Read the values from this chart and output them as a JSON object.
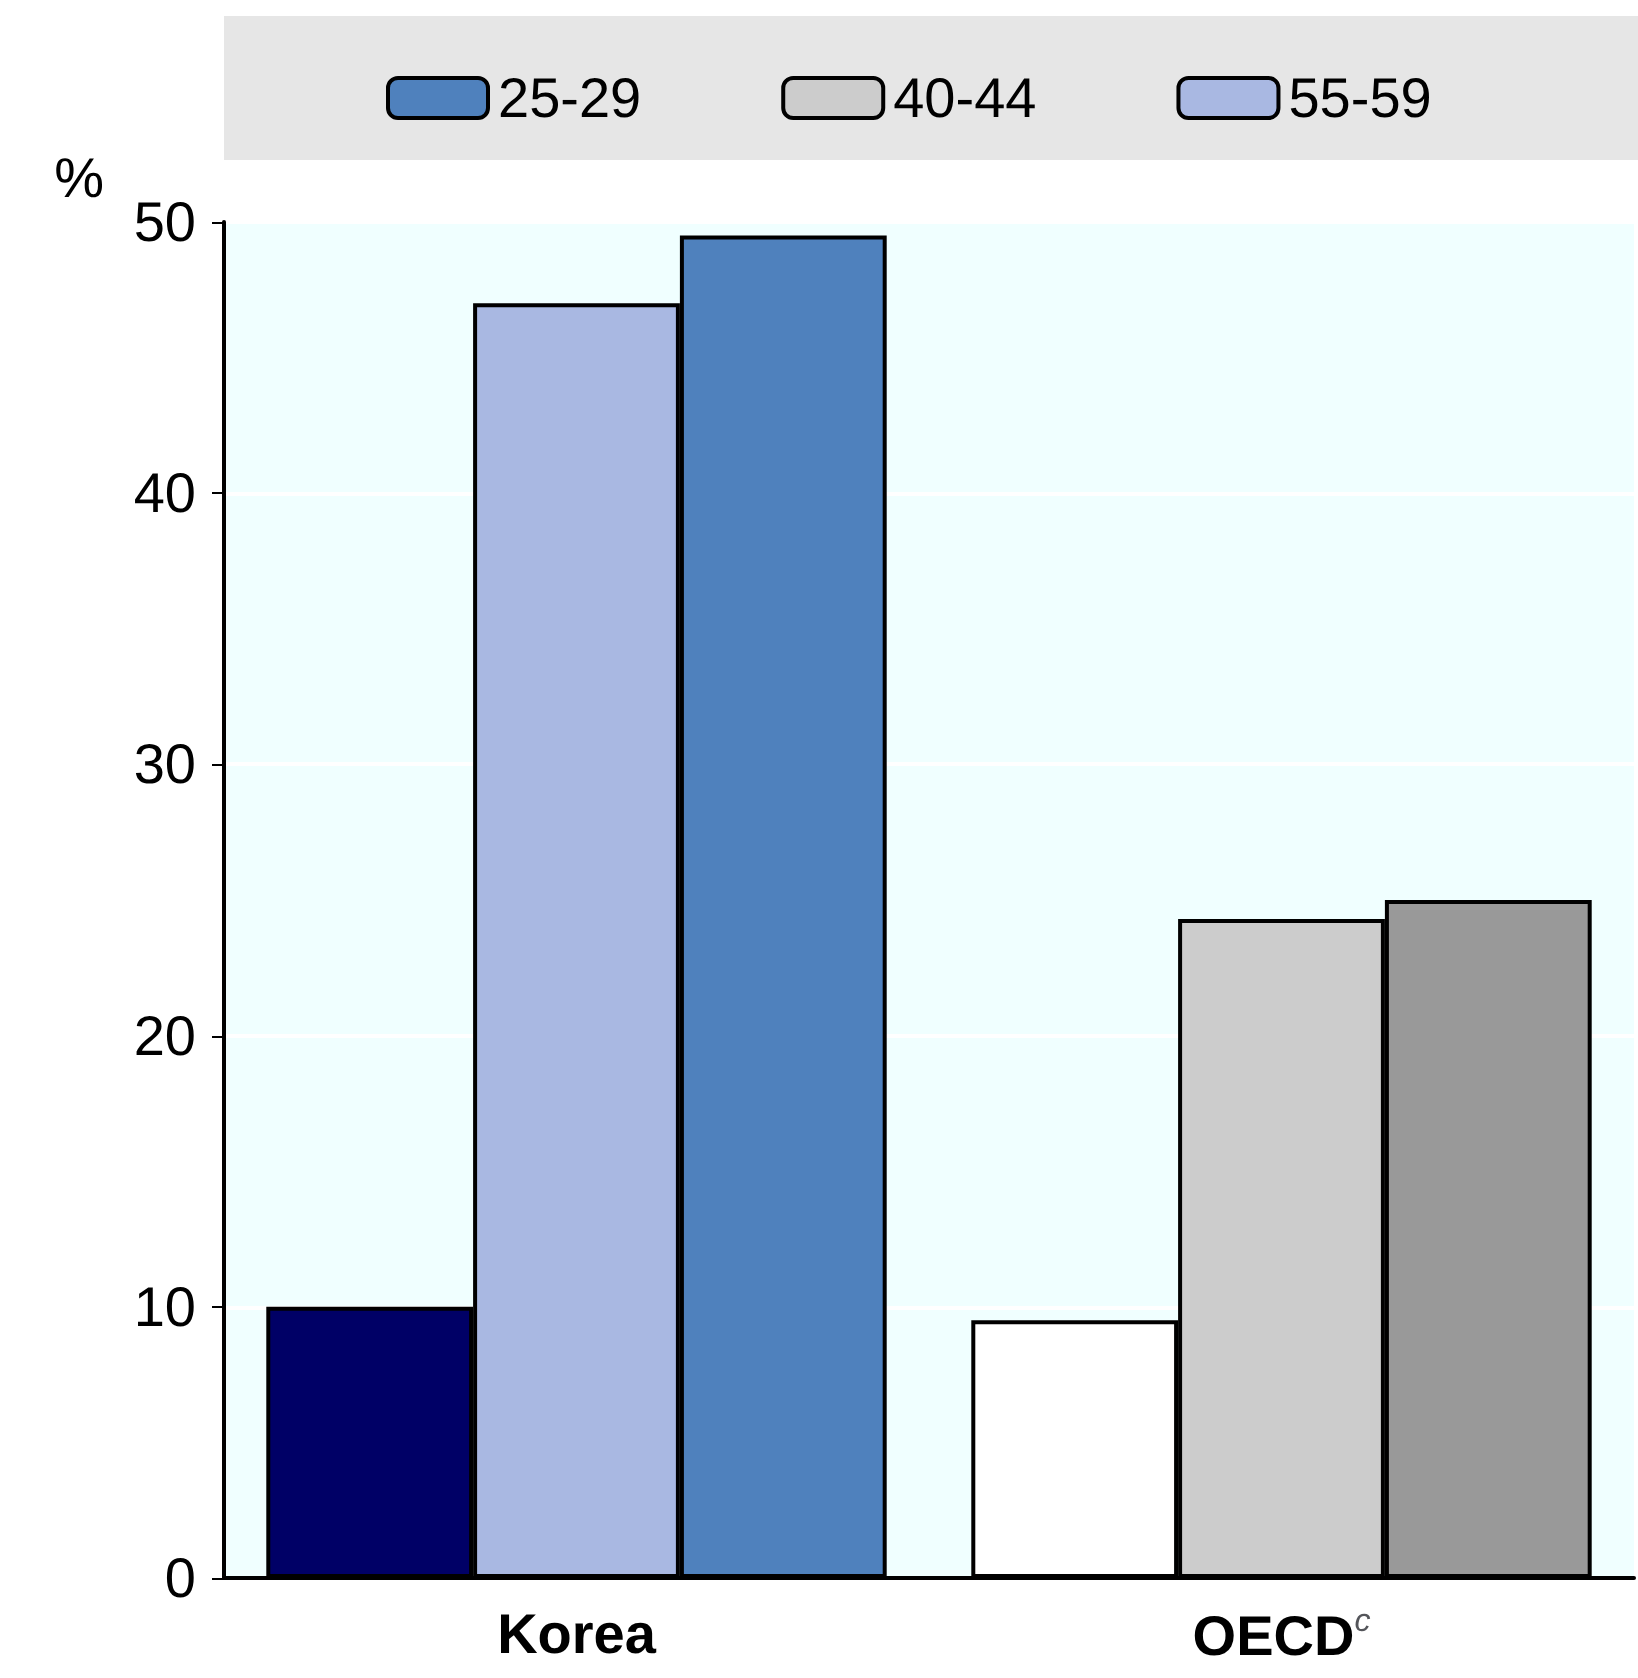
{
  "chart_data": {
    "type": "bar",
    "ylabel": "%",
    "categories": [
      "Korea",
      "OECD$^{c}$"
    ],
    "series": [
      {
        "name": "55-59",
        "color": "#a9b8e2",
        "colors": [
          "#000066",
          "#ffffff"
        ],
        "values": [
          10,
          9.5
        ]
      },
      {
        "name": "40-44",
        "color": "#cccccc",
        "colors": [
          "#a9b8e2",
          "#cccccc"
        ],
        "values": [
          47,
          24.3
        ]
      },
      {
        "name": "25-29",
        "color": "#4f81bd",
        "colors": [
          "#4f81bd",
          "#999999"
        ],
        "values": [
          49.5,
          25
        ]
      }
    ],
    "ylim": [
      0,
      50
    ],
    "yticks": [
      0,
      10,
      20,
      30,
      40,
      50
    ],
    "grid": "y",
    "legend": "top"
  }
}
